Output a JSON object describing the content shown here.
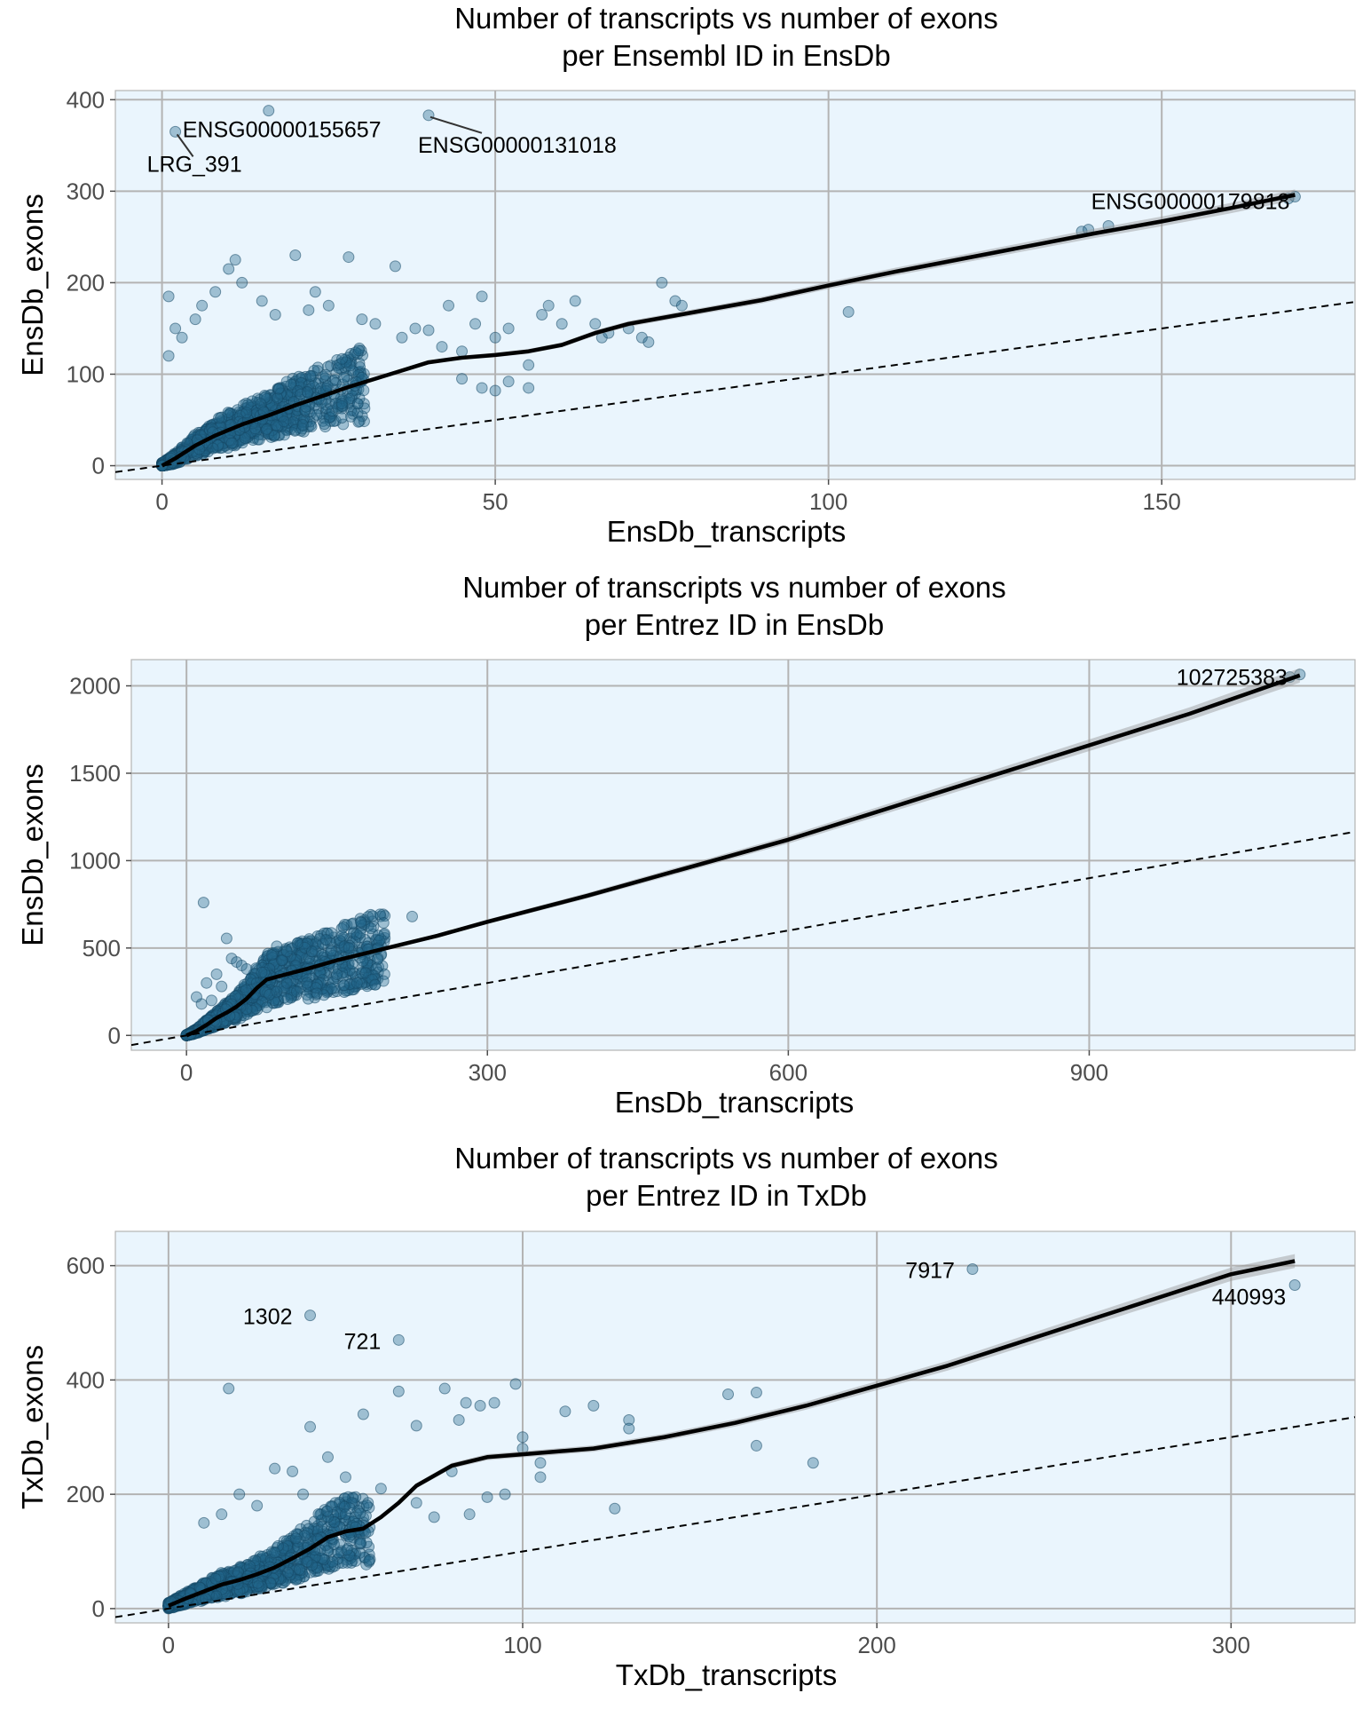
{
  "chart_data": [
    {
      "type": "scatter",
      "title": "Number of transcripts vs number of exons",
      "subtitle": "per Ensembl ID in EnsDb",
      "xlabel": "EnsDb_transcripts",
      "ylabel": "EnsDb_exons",
      "xlim": [
        -7,
        179
      ],
      "ylim": [
        -15,
        410
      ],
      "xticks": [
        0,
        50,
        100,
        150
      ],
      "yticks": [
        0,
        100,
        200,
        300,
        400
      ],
      "grid": true,
      "legend": "none",
      "reference_line": "y = x (dashed)",
      "labels": [
        {
          "text": "LRG_391",
          "x": 2,
          "y": 365
        },
        {
          "text": "ENSG00000155657",
          "x": 16,
          "y": 388
        },
        {
          "text": "ENSG00000131018",
          "x": 40,
          "y": 383
        },
        {
          "text": "ENSG00000179818",
          "x": 170,
          "y": 292
        }
      ],
      "points": [
        [
          2,
          365
        ],
        [
          16,
          388
        ],
        [
          40,
          383
        ],
        [
          138,
          256
        ],
        [
          139,
          258
        ],
        [
          142,
          262
        ],
        [
          169,
          292
        ],
        [
          170,
          294
        ],
        [
          1,
          185
        ],
        [
          1,
          120
        ],
        [
          2,
          150
        ],
        [
          3,
          140
        ],
        [
          5,
          160
        ],
        [
          6,
          175
        ],
        [
          8,
          190
        ],
        [
          10,
          215
        ],
        [
          11,
          225
        ],
        [
          12,
          200
        ],
        [
          15,
          180
        ],
        [
          17,
          165
        ],
        [
          20,
          230
        ],
        [
          22,
          170
        ],
        [
          23,
          190
        ],
        [
          25,
          175
        ],
        [
          28,
          228
        ],
        [
          30,
          160
        ],
        [
          32,
          155
        ],
        [
          35,
          218
        ],
        [
          36,
          140
        ],
        [
          38,
          150
        ],
        [
          40,
          148
        ],
        [
          42,
          130
        ],
        [
          43,
          175
        ],
        [
          45,
          125
        ],
        [
          47,
          155
        ],
        [
          48,
          185
        ],
        [
          50,
          140
        ],
        [
          52,
          150
        ],
        [
          55,
          110
        ],
        [
          57,
          165
        ],
        [
          58,
          175
        ],
        [
          60,
          155
        ],
        [
          62,
          180
        ],
        [
          65,
          155
        ],
        [
          66,
          140
        ],
        [
          67,
          145
        ],
        [
          70,
          150
        ],
        [
          72,
          140
        ],
        [
          73,
          135
        ],
        [
          75,
          200
        ],
        [
          77,
          180
        ],
        [
          78,
          175
        ],
        [
          103,
          168
        ],
        [
          45,
          95
        ],
        [
          48,
          85
        ],
        [
          50,
          82
        ],
        [
          52,
          92
        ],
        [
          55,
          85
        ]
      ],
      "trend": [
        [
          0,
          0
        ],
        [
          2,
          8
        ],
        [
          5,
          22
        ],
        [
          8,
          33
        ],
        [
          12,
          45
        ],
        [
          16,
          55
        ],
        [
          20,
          66
        ],
        [
          24,
          76
        ],
        [
          28,
          86
        ],
        [
          32,
          95
        ],
        [
          36,
          104
        ],
        [
          40,
          113
        ],
        [
          45,
          118
        ],
        [
          50,
          121
        ],
        [
          55,
          125
        ],
        [
          60,
          132
        ],
        [
          65,
          145
        ],
        [
          70,
          155
        ],
        [
          80,
          168
        ],
        [
          90,
          181
        ],
        [
          100,
          197
        ],
        [
          110,
          212
        ],
        [
          120,
          226
        ],
        [
          130,
          240
        ],
        [
          140,
          254
        ],
        [
          150,
          267
        ],
        [
          160,
          281
        ],
        [
          170,
          296
        ]
      ]
    },
    {
      "type": "scatter",
      "title": "Number of transcripts vs number of exons",
      "subtitle": "per Entrez ID in EnsDb",
      "xlabel": "EnsDb_transcripts",
      "ylabel": "EnsDb_exons",
      "xlim": [
        -55,
        1165
      ],
      "ylim": [
        -85,
        2150
      ],
      "xticks": [
        0,
        300,
        600,
        900
      ],
      "yticks": [
        0,
        500,
        1000,
        1500,
        2000
      ],
      "grid": true,
      "legend": "none",
      "reference_line": "y = x (dashed)",
      "labels": [
        {
          "text": "102725383",
          "x": 1110,
          "y": 2065
        }
      ],
      "points": [
        [
          1110,
          2065
        ],
        [
          1100,
          2050
        ],
        [
          17,
          760
        ],
        [
          40,
          555
        ],
        [
          45,
          440
        ],
        [
          50,
          420
        ],
        [
          55,
          400
        ],
        [
          60,
          380
        ],
        [
          70,
          300
        ],
        [
          75,
          360
        ],
        [
          85,
          460
        ],
        [
          90,
          510
        ],
        [
          95,
          430
        ],
        [
          100,
          480
        ],
        [
          105,
          370
        ],
        [
          110,
          350
        ],
        [
          120,
          300
        ],
        [
          125,
          480
        ],
        [
          130,
          240
        ],
        [
          155,
          570
        ],
        [
          170,
          300
        ],
        [
          185,
          320
        ],
        [
          188,
          290
        ],
        [
          225,
          680
        ],
        [
          120,
          380
        ],
        [
          100,
          300
        ],
        [
          20,
          300
        ],
        [
          30,
          350
        ],
        [
          35,
          280
        ],
        [
          15,
          180
        ],
        [
          25,
          200
        ],
        [
          10,
          220
        ],
        [
          60,
          150
        ],
        [
          80,
          160
        ],
        [
          90,
          250
        ],
        [
          110,
          250
        ]
      ],
      "trend": [
        [
          0,
          0
        ],
        [
          10,
          25
        ],
        [
          20,
          60
        ],
        [
          30,
          100
        ],
        [
          40,
          130
        ],
        [
          50,
          165
        ],
        [
          60,
          210
        ],
        [
          70,
          270
        ],
        [
          80,
          320
        ],
        [
          100,
          350
        ],
        [
          120,
          380
        ],
        [
          150,
          430
        ],
        [
          200,
          500
        ],
        [
          250,
          570
        ],
        [
          300,
          650
        ],
        [
          400,
          800
        ],
        [
          500,
          960
        ],
        [
          600,
          1120
        ],
        [
          700,
          1300
        ],
        [
          800,
          1480
        ],
        [
          900,
          1660
        ],
        [
          1000,
          1840
        ],
        [
          1110,
          2060
        ]
      ]
    },
    {
      "type": "scatter",
      "title": "Number of transcripts vs number of exons",
      "subtitle": "per Entrez ID in TxDb",
      "xlabel": "TxDb_transcripts",
      "ylabel": "TxDb_exons",
      "xlim": [
        -15,
        335
      ],
      "ylim": [
        -25,
        660
      ],
      "xticks": [
        0,
        100,
        200,
        300
      ],
      "yticks": [
        0,
        200,
        400,
        600
      ],
      "grid": true,
      "legend": "none",
      "reference_line": "y = x (dashed)",
      "labels": [
        {
          "text": "1302",
          "x": 40,
          "y": 513
        },
        {
          "text": "721",
          "x": 65,
          "y": 470
        },
        {
          "text": "7917",
          "x": 227,
          "y": 594
        },
        {
          "text": "440993",
          "x": 318,
          "y": 566
        }
      ],
      "points": [
        [
          40,
          513
        ],
        [
          65,
          470
        ],
        [
          227,
          594
        ],
        [
          318,
          566
        ],
        [
          17,
          385
        ],
        [
          40,
          318
        ],
        [
          55,
          340
        ],
        [
          65,
          380
        ],
        [
          70,
          320
        ],
        [
          78,
          385
        ],
        [
          82,
          330
        ],
        [
          84,
          360
        ],
        [
          88,
          355
        ],
        [
          92,
          360
        ],
        [
          98,
          393
        ],
        [
          100,
          300
        ],
        [
          105,
          255
        ],
        [
          105,
          230
        ],
        [
          112,
          345
        ],
        [
          120,
          355
        ],
        [
          126,
          175
        ],
        [
          130,
          330
        ],
        [
          130,
          315
        ],
        [
          158,
          375
        ],
        [
          166,
          378
        ],
        [
          166,
          285
        ],
        [
          182,
          255
        ],
        [
          50,
          165
        ],
        [
          60,
          210
        ],
        [
          70,
          185
        ],
        [
          75,
          160
        ],
        [
          80,
          240
        ],
        [
          85,
          165
        ],
        [
          90,
          195
        ],
        [
          100,
          280
        ],
        [
          95,
          200
        ],
        [
          30,
          245
        ],
        [
          35,
          240
        ],
        [
          45,
          265
        ],
        [
          50,
          230
        ],
        [
          38,
          200
        ],
        [
          20,
          200
        ],
        [
          25,
          180
        ],
        [
          15,
          165
        ],
        [
          10,
          150
        ]
      ],
      "trend": [
        [
          0,
          5
        ],
        [
          5,
          18
        ],
        [
          10,
          30
        ],
        [
          15,
          42
        ],
        [
          20,
          50
        ],
        [
          25,
          60
        ],
        [
          30,
          72
        ],
        [
          35,
          88
        ],
        [
          40,
          105
        ],
        [
          45,
          125
        ],
        [
          50,
          135
        ],
        [
          55,
          140
        ],
        [
          60,
          160
        ],
        [
          65,
          185
        ],
        [
          70,
          215
        ],
        [
          80,
          250
        ],
        [
          90,
          265
        ],
        [
          100,
          270
        ],
        [
          120,
          280
        ],
        [
          140,
          300
        ],
        [
          160,
          325
        ],
        [
          180,
          355
        ],
        [
          200,
          390
        ],
        [
          220,
          425
        ],
        [
          240,
          465
        ],
        [
          260,
          505
        ],
        [
          280,
          545
        ],
        [
          300,
          585
        ],
        [
          318,
          608
        ]
      ]
    }
  ]
}
